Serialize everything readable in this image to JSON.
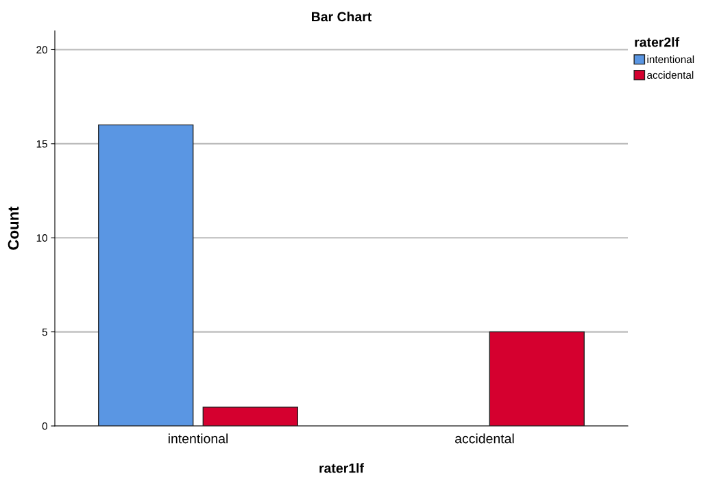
{
  "chart_data": {
    "type": "bar",
    "title": "Bar Chart",
    "xlabel": "rater1lf",
    "ylabel": "Count",
    "legend_title": "rater2lf",
    "categories": [
      "intentional",
      "accidental"
    ],
    "series": [
      {
        "name": "intentional",
        "color": "#5a96e3",
        "values": [
          16,
          null
        ]
      },
      {
        "name": "accidental",
        "color": "#d5002f",
        "values": [
          1,
          5
        ]
      }
    ],
    "ylim": [
      0,
      21
    ],
    "yticks": [
      0,
      5,
      10,
      15,
      20
    ],
    "grid": "y",
    "legend": "top right"
  }
}
